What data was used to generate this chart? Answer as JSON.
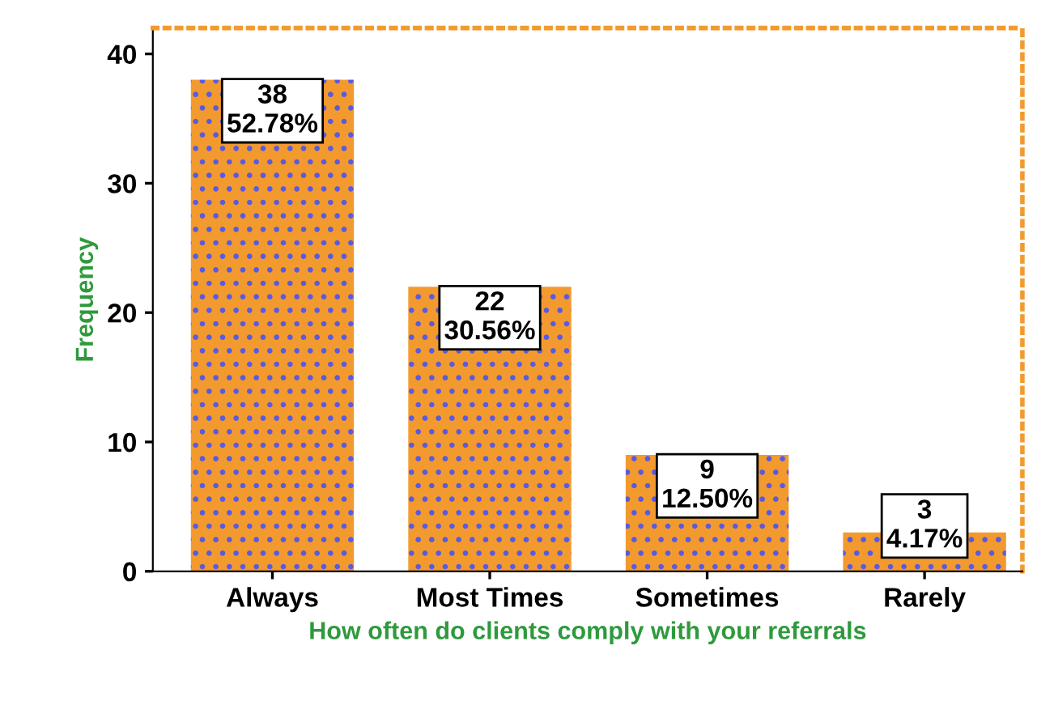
{
  "chart_data": {
    "type": "bar",
    "xlabel": "How often do clients comply with your referrals",
    "ylabel": "Frequency",
    "categories": [
      "Always",
      "Most Times",
      "Sometimes",
      "Rarely"
    ],
    "values": [
      38,
      22,
      9,
      3
    ],
    "value_labels": [
      "38\n52.78%",
      "22\n30.56%",
      "9\n12.50%",
      "3\n4.17%"
    ],
    "color": "#f39a2e",
    "ylim": [
      0,
      42
    ],
    "yticks": [
      0,
      10,
      20,
      30,
      40
    ],
    "grid": false,
    "legend": false
  }
}
